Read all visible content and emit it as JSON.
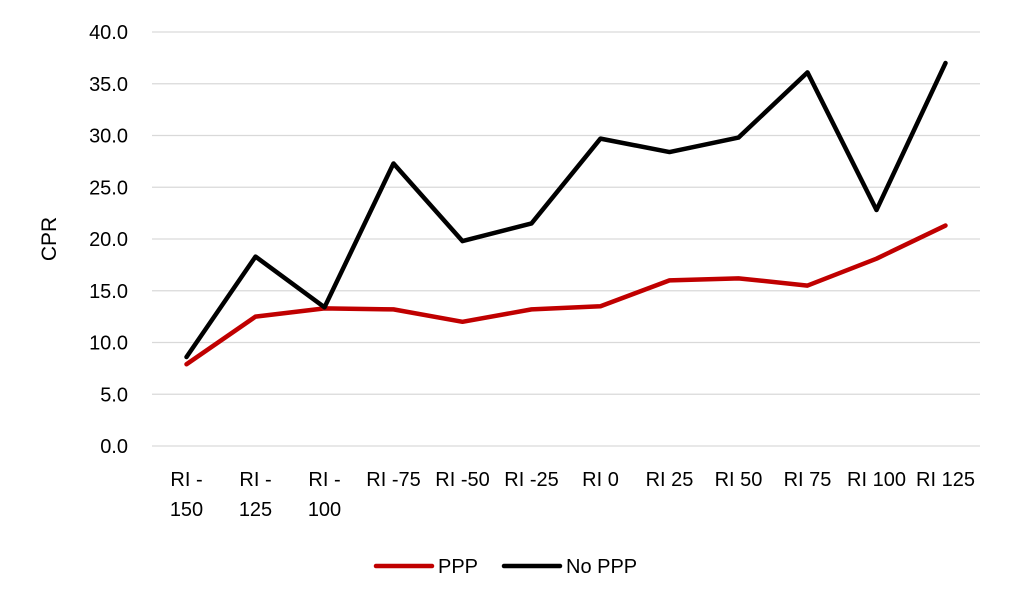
{
  "chart_data": {
    "type": "line",
    "title": "",
    "xlabel": "",
    "ylabel": "CPR",
    "ylim": [
      0,
      40
    ],
    "ytick_step": 5,
    "ytick_labels": [
      "0.0",
      "5.0",
      "10.0",
      "15.0",
      "20.0",
      "25.0",
      "30.0",
      "35.0",
      "40.0"
    ],
    "grid": "horizontal",
    "legend_position": "bottom",
    "categories": [
      [
        "RI -",
        "150"
      ],
      [
        "RI -",
        "125"
      ],
      [
        "RI -",
        "100"
      ],
      [
        "RI -75"
      ],
      [
        "RI -50"
      ],
      [
        "RI -25"
      ],
      [
        "RI 0"
      ],
      [
        "RI 25"
      ],
      [
        "RI 50"
      ],
      [
        "RI 75"
      ],
      [
        "RI 100"
      ],
      [
        "RI 125"
      ]
    ],
    "series": [
      {
        "name": "PPP",
        "color": "#c00000",
        "values": [
          7.9,
          12.5,
          13.3,
          13.2,
          12.0,
          13.2,
          13.5,
          16.0,
          16.2,
          15.5,
          18.1,
          21.3
        ]
      },
      {
        "name": "No PPP",
        "color": "#000000",
        "values": [
          8.6,
          18.3,
          13.4,
          27.3,
          19.8,
          21.5,
          29.7,
          28.4,
          29.8,
          36.1,
          22.8,
          37.0
        ]
      }
    ]
  }
}
